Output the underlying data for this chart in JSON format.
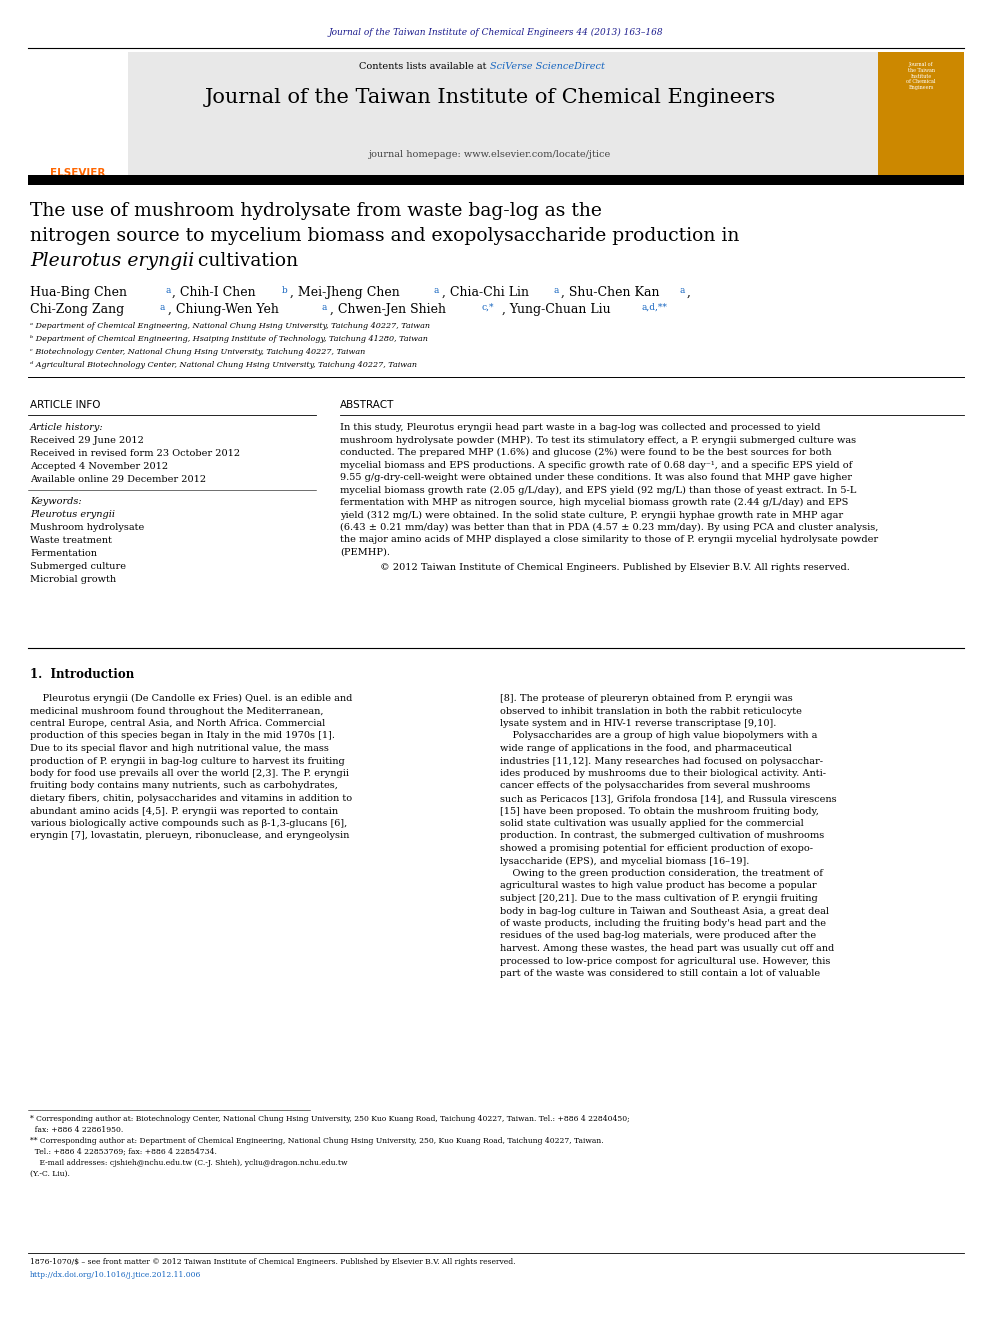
{
  "page_width": 9.92,
  "page_height": 13.23,
  "dpi": 100,
  "bg_color": "#ffffff",
  "journal_ref_text": "Journal of the Taiwan Institute of Chemical Engineers 44 (2013) 163–168",
  "journal_ref_color": "#1a1a8c",
  "header_title": "Journal of the Taiwan Institute of Chemical Engineers",
  "header_subtitle": "journal homepage: www.elsevier.com/locate/jtice",
  "sciverse_color": "#1565c0",
  "article_title_line1": "The use of mushroom hydrolysate from waste bag-log as the",
  "article_title_line2": "nitrogen source to mycelium biomass and exopolysaccharide production in",
  "article_title_italic": "Pleurotus eryngii",
  "article_title_end": " cultivation",
  "affil_a": "ᵃ Department of Chemical Engineering, National Chung Hsing University, Taichung 40227, Taiwan",
  "affil_b": "ᵇ Department of Chemical Engineering, Hsaiping Institute of Technology, Taichung 41280, Taiwan",
  "affil_c": "ᶜ Biotechnology Center, National Chung Hsing University, Taichung 40227, Taiwan",
  "affil_d": "ᵈ Agricultural Biotechnology Center, National Chung Hsing University, Taichung 40227, Taiwan",
  "received1": "Received 29 June 2012",
  "received2": "Received in revised form 23 October 2012",
  "accepted": "Accepted 4 November 2012",
  "available": "Available online 29 December 2012",
  "keywords": [
    "Pleurotus eryngii",
    "Mushroom hydrolysate",
    "Waste treatment",
    "Fermentation",
    "Submerged culture",
    "Microbial growth"
  ],
  "copyright_text": "© 2012 Taiwan Institute of Chemical Engineers. Published by Elsevier B.V. All rights reserved.",
  "bottom_issn": "1876-1070/$ – see front matter © 2012 Taiwan Institute of Chemical Engineers. Published by Elsevier B.V. All rights reserved.",
  "bottom_doi": "http://dx.doi.org/10.1016/j.jtice.2012.11.006"
}
